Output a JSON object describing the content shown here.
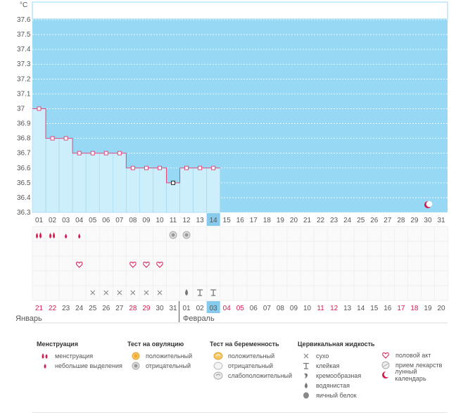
{
  "chart_data": {
    "type": "line",
    "ylabel": "°C",
    "ylim": [
      36.3,
      37.7
    ],
    "y_ticks": [
      "37.6",
      "37.5",
      "37.4",
      "37.3",
      "37.2",
      "37.1",
      "37",
      "36.9",
      "36.8",
      "36.7",
      "36.6",
      "36.5",
      "36.4",
      "36.3"
    ],
    "cycle_days": [
      "01",
      "02",
      "03",
      "04",
      "05",
      "06",
      "07",
      "08",
      "09",
      "10",
      "11",
      "12",
      "13",
      "14",
      "15",
      "16",
      "17",
      "18",
      "19",
      "20",
      "21",
      "22",
      "23",
      "24",
      "25",
      "26",
      "27",
      "28",
      "29",
      "30",
      "31"
    ],
    "current_day_index": 13,
    "temperatures": [
      37.0,
      36.8,
      36.8,
      36.7,
      36.7,
      36.7,
      36.7,
      36.6,
      36.6,
      36.6,
      36.5,
      36.6,
      36.6,
      36.6
    ],
    "low_point_index": 10,
    "moon_day_index": 29,
    "menstruation": [
      "heavy",
      "heavy",
      "light",
      "light",
      "",
      "",
      "",
      "",
      "",
      "",
      "",
      "",
      "",
      "",
      "",
      "",
      "",
      "",
      "",
      "",
      "",
      "",
      "",
      "",
      "",
      "",
      "",
      "",
      "",
      "",
      ""
    ],
    "ovulation_test": [
      "",
      "",
      "",
      "",
      "",
      "",
      "",
      "",
      "",
      "",
      "negative",
      "negative",
      "",
      "",
      "",
      "",
      "",
      "",
      "",
      "",
      "",
      "",
      "",
      "",
      "",
      "",
      "",
      "",
      "",
      "",
      ""
    ],
    "intercourse": [
      "",
      "",
      "",
      "heart",
      "",
      "",
      "",
      "heart",
      "heart",
      "heart",
      "",
      "",
      "",
      "",
      "",
      "",
      "",
      "",
      "",
      "",
      "",
      "",
      "",
      "",
      "",
      "",
      "",
      "",
      "",
      "",
      ""
    ],
    "cervical_fluid": [
      "",
      "",
      "",
      "",
      "dry",
      "dry",
      "dry",
      "dry",
      "dry",
      "dry",
      "",
      "watery",
      "sticky",
      "sticky",
      "",
      "",
      "",
      "",
      "",
      "",
      "",
      "",
      "",
      "",
      "",
      "",
      "",
      "",
      "",
      "",
      ""
    ],
    "dates": [
      "21",
      "22",
      "23",
      "24",
      "25",
      "26",
      "27",
      "28",
      "29",
      "30",
      "31",
      "01",
      "02",
      "03",
      "04",
      "05",
      "06",
      "07",
      "08",
      "09",
      "10",
      "11",
      "12",
      "13",
      "14",
      "15",
      "16",
      "17",
      "18",
      "19",
      "20"
    ],
    "date_colors": [
      "red",
      "red",
      "dark",
      "dark",
      "dark",
      "dark",
      "dark",
      "red",
      "red",
      "dark",
      "dark",
      "dark",
      "dark",
      "dark",
      "red",
      "red",
      "dark",
      "dark",
      "dark",
      "dark",
      "dark",
      "red",
      "red",
      "dark",
      "dark",
      "dark",
      "dark",
      "red",
      "red",
      "dark",
      "dark"
    ],
    "month_start": "Январь",
    "month_next": "Февраль",
    "month_break_index": 11
  },
  "colors": {
    "sky": "#97d9f5",
    "fill": "#cdeefb",
    "line": "#e0487c",
    "accent_red": "#d81b4f",
    "highlight": "#86cbee"
  },
  "legend": {
    "menstruation": {
      "title": "Менструация",
      "items": [
        {
          "icon": "drop-pair-icon",
          "label": "менструация"
        },
        {
          "icon": "small-drop-icon",
          "label": "небольшие выделения"
        }
      ]
    },
    "ovulation": {
      "title": "Тест на овуляцию",
      "items": [
        {
          "icon": "orange-circle-icon",
          "label": "положительный"
        },
        {
          "icon": "gray-circle-icon",
          "label": "отрицательный"
        }
      ]
    },
    "pregnancy": {
      "title": "Тест на беременность",
      "items": [
        {
          "icon": "orange-swirl-icon",
          "label": "положительный"
        },
        {
          "icon": "white-oval-icon",
          "label": "отрицательный"
        },
        {
          "icon": "faint-swirl-icon",
          "label": "слабоположительный"
        }
      ]
    },
    "fluid": {
      "title": "Цервикальная жидкость",
      "items": [
        {
          "icon": "cross-icon",
          "label": "сухо"
        },
        {
          "icon": "t-icon",
          "label": "клейкая"
        },
        {
          "icon": "cream-icon",
          "label": "кремообразная"
        },
        {
          "icon": "drop-icon",
          "label": "водянистая"
        },
        {
          "icon": "egg-white-icon",
          "label": "яичный белок"
        }
      ]
    },
    "other": {
      "items": [
        {
          "icon": "heart-icon",
          "label": "половой акт"
        },
        {
          "icon": "pill-icon",
          "label": "прием лекарств"
        },
        {
          "icon": "moon-icon",
          "label": "лунный календарь"
        }
      ]
    }
  }
}
